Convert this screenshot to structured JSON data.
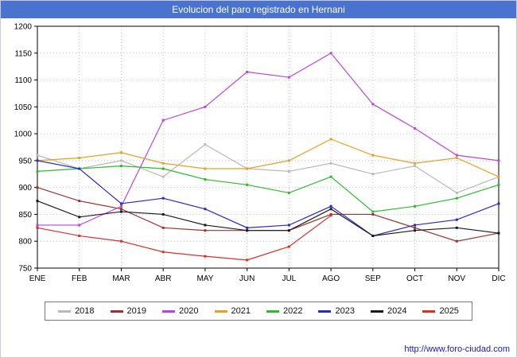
{
  "title_bar": {
    "text": "Evolucion del paro registrado en Hernani",
    "bg": "#4a72cf",
    "text_color": "#ffffff"
  },
  "footer": {
    "url": "http://www.foro-ciudad.com"
  },
  "chart_data": {
    "type": "line",
    "title": "Evolucion del paro registrado en Hernani",
    "categories": [
      "ENE",
      "FEB",
      "MAR",
      "ABR",
      "MAY",
      "JUN",
      "JUL",
      "AGO",
      "SEP",
      "OCT",
      "NOV",
      "DIC"
    ],
    "xlabel": "",
    "ylabel": "",
    "ylim": [
      750,
      1200
    ],
    "ytick_step": 50,
    "yticks": [
      750,
      800,
      850,
      900,
      950,
      1000,
      1050,
      1100,
      1150,
      1200
    ],
    "grid": true,
    "grid_style": "dotted",
    "legend_position": "bottom",
    "series": [
      {
        "name": "2018",
        "color": "#b9b9b9",
        "values": [
          960,
          935,
          950,
          920,
          980,
          935,
          930,
          945,
          925,
          940,
          890,
          920
        ]
      },
      {
        "name": "2019",
        "color": "#993333",
        "values": [
          900,
          875,
          860,
          825,
          820,
          820,
          820,
          850,
          850,
          825,
          800,
          815
        ]
      },
      {
        "name": "2020",
        "color": "#bb44dd",
        "values": [
          830,
          830,
          865,
          1025,
          1050,
          1115,
          1105,
          1150,
          1055,
          1010,
          960,
          950
        ]
      },
      {
        "name": "2021",
        "color": "#e8a020",
        "values": [
          950,
          955,
          965,
          945,
          935,
          935,
          950,
          990,
          960,
          945,
          955,
          920
        ]
      },
      {
        "name": "2022",
        "color": "#2dbb2d",
        "values": [
          930,
          935,
          940,
          935,
          915,
          905,
          890,
          920,
          855,
          865,
          880,
          905
        ]
      },
      {
        "name": "2023",
        "color": "#2929c8",
        "values": [
          950,
          935,
          870,
          880,
          860,
          825,
          830,
          865,
          810,
          830,
          840,
          870
        ]
      },
      {
        "name": "2024",
        "color": "#1a1a1a",
        "values": [
          875,
          845,
          855,
          850,
          830,
          820,
          820,
          860,
          810,
          820,
          825,
          815
        ]
      },
      {
        "name": "2025",
        "color": "#d93025",
        "values": [
          825,
          810,
          800,
          780,
          772,
          765,
          790,
          848
        ]
      }
    ]
  }
}
